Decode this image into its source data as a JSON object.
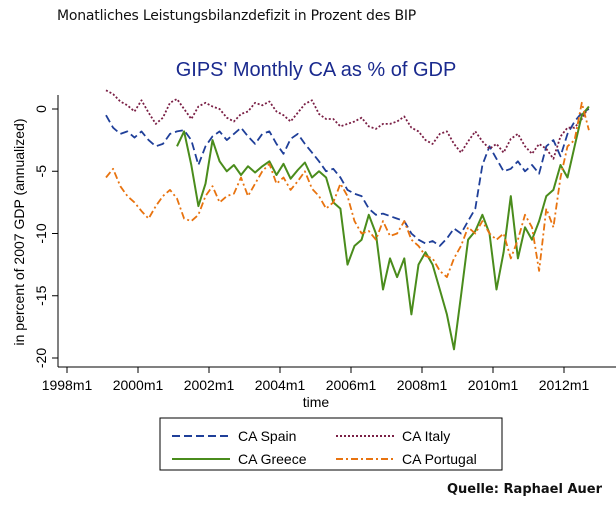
{
  "page": {
    "caption": "Monatliches Leistungsbilanzdefizit in Prozent des BIP",
    "source": "Quelle: Raphael Auer"
  },
  "chart_data": {
    "type": "line",
    "title": "GIPS' Monthly CA as % of GDP",
    "xlabel": "time",
    "ylabel": "in percent of 2007 GDP (annualized)",
    "xlim": [
      1997.8,
      2013.2
    ],
    "ylim": [
      -20.7,
      2
    ],
    "x_ticks": [
      1998,
      2000,
      2002,
      2004,
      2006,
      2008,
      2010,
      2012
    ],
    "x_tick_labels": [
      "1998m1",
      "2000m1",
      "2002m1",
      "2004m1",
      "2006m1",
      "2008m1",
      "2010m1",
      "2012m1"
    ],
    "y_ticks": [
      0,
      -5,
      -10,
      -15,
      -20
    ],
    "y_tick_labels": [
      "0",
      "-5",
      "-10",
      "-15",
      "-20"
    ],
    "grid": false,
    "legend_position": "bottom",
    "series": [
      {
        "name": "CA Spain",
        "color": "#1f3f99",
        "style": "dashed",
        "x": [
          1999.1,
          1999.3,
          1999.5,
          1999.7,
          1999.9,
          2000.1,
          2000.3,
          2000.5,
          2000.7,
          2000.9,
          2001.1,
          2001.3,
          2001.5,
          2001.7,
          2001.9,
          2002.1,
          2002.3,
          2002.5,
          2002.7,
          2002.9,
          2003.1,
          2003.3,
          2003.5,
          2003.7,
          2003.9,
          2004.1,
          2004.3,
          2004.5,
          2004.7,
          2004.9,
          2005.1,
          2005.3,
          2005.5,
          2005.7,
          2005.9,
          2006.1,
          2006.3,
          2006.5,
          2006.7,
          2006.9,
          2007.1,
          2007.3,
          2007.5,
          2007.7,
          2007.9,
          2008.1,
          2008.3,
          2008.5,
          2008.7,
          2008.9,
          2009.1,
          2009.3,
          2009.5,
          2009.7,
          2009.9,
          2010.1,
          2010.3,
          2010.5,
          2010.7,
          2010.9,
          2011.1,
          2011.3,
          2011.5,
          2011.7,
          2011.9,
          2012.1,
          2012.3,
          2012.5,
          2012.7
        ],
        "values": [
          -0.5,
          -1.5,
          -2.0,
          -1.8,
          -2.3,
          -1.8,
          -2.5,
          -3.0,
          -2.8,
          -2.0,
          -1.8,
          -1.7,
          -2.5,
          -4.5,
          -3.0,
          -2.2,
          -1.8,
          -2.5,
          -2.0,
          -1.5,
          -2.2,
          -2.8,
          -2.0,
          -1.8,
          -2.8,
          -3.6,
          -2.4,
          -2.0,
          -2.8,
          -3.5,
          -4.2,
          -5.0,
          -4.8,
          -5.5,
          -6.5,
          -6.8,
          -7.0,
          -8.0,
          -8.5,
          -8.4,
          -8.6,
          -8.8,
          -9.0,
          -10.0,
          -10.5,
          -10.8,
          -10.6,
          -11.0,
          -10.4,
          -9.6,
          -10.0,
          -9.0,
          -8.0,
          -4.5,
          -3.0,
          -4.0,
          -5.0,
          -4.8,
          -4.2,
          -5.0,
          -4.5,
          -5.2,
          -3.0,
          -2.5,
          -3.8,
          -2.0,
          -1.0,
          -0.3,
          0.0
        ]
      },
      {
        "name": "CA Italy",
        "color": "#7a1f45",
        "style": "dotted",
        "x": [
          1999.1,
          1999.3,
          1999.5,
          1999.7,
          1999.9,
          2000.1,
          2000.3,
          2000.5,
          2000.7,
          2000.9,
          2001.1,
          2001.3,
          2001.5,
          2001.7,
          2001.9,
          2002.1,
          2002.3,
          2002.5,
          2002.7,
          2002.9,
          2003.1,
          2003.3,
          2003.5,
          2003.7,
          2003.9,
          2004.1,
          2004.3,
          2004.5,
          2004.7,
          2004.9,
          2005.1,
          2005.3,
          2005.5,
          2005.7,
          2005.9,
          2006.1,
          2006.3,
          2006.5,
          2006.7,
          2006.9,
          2007.1,
          2007.3,
          2007.5,
          2007.7,
          2007.9,
          2008.1,
          2008.3,
          2008.5,
          2008.7,
          2008.9,
          2009.1,
          2009.3,
          2009.5,
          2009.7,
          2009.9,
          2010.1,
          2010.3,
          2010.5,
          2010.7,
          2010.9,
          2011.1,
          2011.3,
          2011.5,
          2011.7,
          2011.9,
          2012.1,
          2012.3,
          2012.5,
          2012.7
        ],
        "values": [
          1.5,
          1.2,
          0.6,
          0.3,
          -0.2,
          0.7,
          -0.3,
          -1.2,
          -0.7,
          0.5,
          0.8,
          0.0,
          -0.8,
          0.2,
          0.5,
          0.2,
          0.0,
          -0.7,
          -1.0,
          -0.4,
          -0.2,
          0.5,
          0.3,
          0.6,
          -0.2,
          -0.5,
          -1.0,
          -0.3,
          0.4,
          0.7,
          -0.4,
          -0.8,
          -0.8,
          -1.4,
          -1.2,
          -1.0,
          -0.7,
          -1.4,
          -1.6,
          -1.2,
          -1.2,
          -1.0,
          -0.6,
          -1.5,
          -1.8,
          -2.5,
          -2.8,
          -2.0,
          -1.8,
          -2.8,
          -3.5,
          -2.6,
          -1.8,
          -2.6,
          -3.2,
          -2.8,
          -3.5,
          -2.4,
          -2.0,
          -3.0,
          -3.6,
          -2.8,
          -3.2,
          -4.0,
          -2.2,
          -1.5,
          -1.5,
          -0.8,
          0.2
        ]
      },
      {
        "name": "CA Greece",
        "color": "#4a8c1c",
        "style": "solid",
        "x": [
          2001.1,
          2001.3,
          2001.5,
          2001.7,
          2001.9,
          2002.1,
          2002.3,
          2002.5,
          2002.7,
          2002.9,
          2003.1,
          2003.3,
          2003.5,
          2003.7,
          2003.9,
          2004.1,
          2004.3,
          2004.5,
          2004.7,
          2004.9,
          2005.1,
          2005.3,
          2005.5,
          2005.7,
          2005.9,
          2006.1,
          2006.3,
          2006.5,
          2006.7,
          2006.9,
          2007.1,
          2007.3,
          2007.5,
          2007.7,
          2007.9,
          2008.1,
          2008.3,
          2008.5,
          2008.7,
          2008.9,
          2009.1,
          2009.3,
          2009.5,
          2009.7,
          2009.9,
          2010.1,
          2010.3,
          2010.5,
          2010.7,
          2010.9,
          2011.1,
          2011.3,
          2011.5,
          2011.7,
          2011.9,
          2012.1,
          2012.3,
          2012.5,
          2012.7
        ],
        "values": [
          -3.0,
          -1.8,
          -4.5,
          -7.8,
          -6.0,
          -2.5,
          -4.2,
          -5.0,
          -4.5,
          -5.3,
          -4.6,
          -5.1,
          -4.6,
          -4.2,
          -5.3,
          -4.4,
          -5.6,
          -4.9,
          -4.3,
          -5.5,
          -5.0,
          -5.5,
          -7.5,
          -8.0,
          -12.5,
          -11.0,
          -10.5,
          -8.5,
          -10.0,
          -14.5,
          -12.0,
          -13.5,
          -12.0,
          -16.5,
          -12.5,
          -11.5,
          -12.5,
          -14.5,
          -16.5,
          -19.3,
          -15.0,
          -10.5,
          -9.8,
          -8.5,
          -10.0,
          -14.5,
          -11.5,
          -7.0,
          -12.0,
          -9.5,
          -10.5,
          -9.0,
          -7.0,
          -6.5,
          -4.5,
          -5.5,
          -3.0,
          -0.5,
          0.2
        ]
      },
      {
        "name": "CA Portugal",
        "color": "#e8730f",
        "style": "dashdot",
        "x": [
          1999.1,
          1999.3,
          1999.5,
          1999.7,
          1999.9,
          2000.1,
          2000.3,
          2000.5,
          2000.7,
          2000.9,
          2001.1,
          2001.3,
          2001.5,
          2001.7,
          2001.9,
          2002.1,
          2002.3,
          2002.5,
          2002.7,
          2002.9,
          2003.1,
          2003.3,
          2003.5,
          2003.7,
          2003.9,
          2004.1,
          2004.3,
          2004.5,
          2004.7,
          2004.9,
          2005.1,
          2005.3,
          2005.5,
          2005.7,
          2005.9,
          2006.1,
          2006.3,
          2006.5,
          2006.7,
          2006.9,
          2007.1,
          2007.3,
          2007.5,
          2007.7,
          2007.9,
          2008.1,
          2008.3,
          2008.5,
          2008.7,
          2008.9,
          2009.1,
          2009.3,
          2009.5,
          2009.7,
          2009.9,
          2010.1,
          2010.3,
          2010.5,
          2010.7,
          2010.9,
          2011.1,
          2011.3,
          2011.5,
          2011.7,
          2011.9,
          2012.1,
          2012.3,
          2012.5,
          2012.7
        ],
        "values": [
          -5.5,
          -4.8,
          -6.2,
          -7.0,
          -7.5,
          -8.2,
          -8.8,
          -7.8,
          -7.0,
          -6.5,
          -7.2,
          -8.8,
          -9.0,
          -8.5,
          -7.0,
          -6.2,
          -7.5,
          -7.0,
          -6.8,
          -5.5,
          -7.0,
          -6.0,
          -5.0,
          -4.4,
          -6.0,
          -5.5,
          -6.5,
          -5.8,
          -5.0,
          -6.4,
          -7.0,
          -8.0,
          -7.5,
          -6.0,
          -7.0,
          -9.0,
          -10.0,
          -9.8,
          -10.5,
          -9.0,
          -10.2,
          -10.0,
          -9.0,
          -10.5,
          -11.0,
          -11.8,
          -12.0,
          -13.0,
          -13.5,
          -12.0,
          -11.0,
          -9.5,
          -10.0,
          -9.0,
          -10.0,
          -10.5,
          -10.0,
          -12.0,
          -10.5,
          -8.5,
          -9.5,
          -13.0,
          -8.0,
          -9.5,
          -5.5,
          -3.0,
          -2.5,
          0.5,
          -1.7
        ]
      }
    ]
  }
}
